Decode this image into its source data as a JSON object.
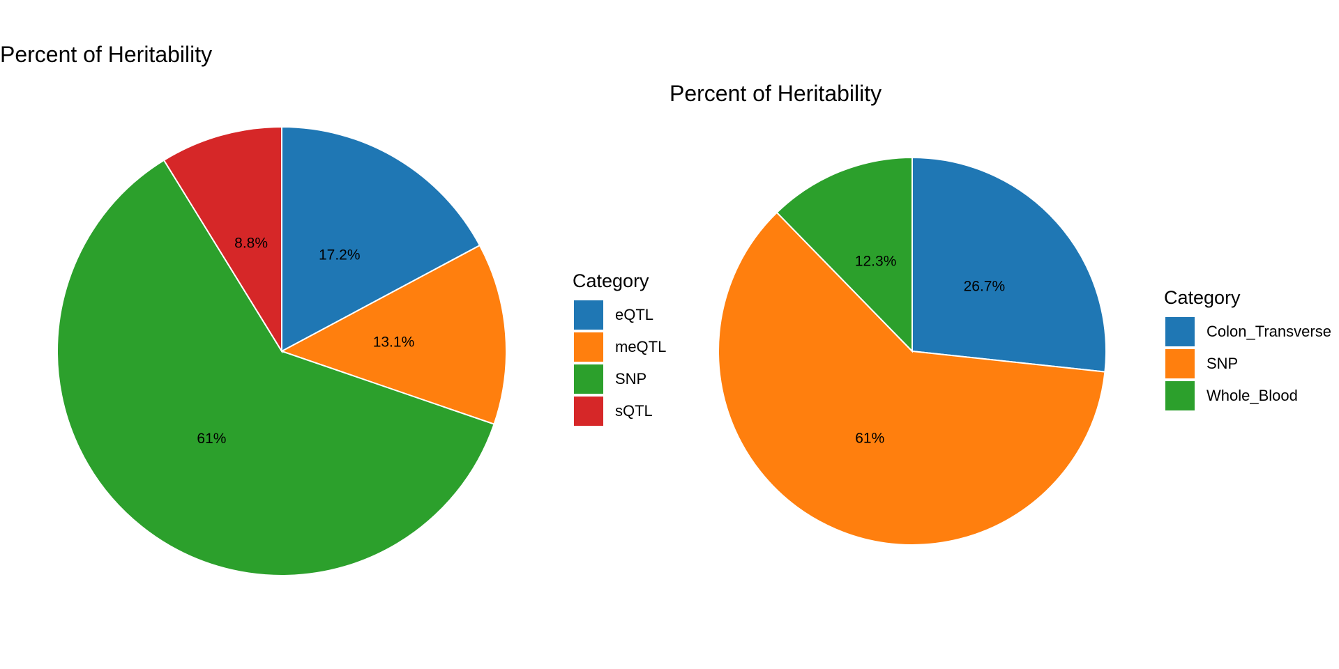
{
  "chart_data": [
    {
      "type": "pie",
      "title": "Percent of Heritability",
      "legend_title": "Category",
      "legend_position": "right",
      "slices": [
        {
          "category": "eQTL",
          "value": 17.2,
          "label": "17.2%",
          "color": "#1F77B4"
        },
        {
          "category": "meQTL",
          "value": 13.1,
          "label": "13.1%",
          "color": "#FF7F0E"
        },
        {
          "category": "SNP",
          "value": 61.0,
          "label": "61%",
          "color": "#2CA02C"
        },
        {
          "category": "sQTL",
          "value": 8.8,
          "label": "8.8%",
          "color": "#D62728"
        }
      ]
    },
    {
      "type": "pie",
      "title": "Percent of Heritability",
      "legend_title": "Category",
      "legend_position": "right",
      "slices": [
        {
          "category": "Colon_Transverse",
          "value": 26.7,
          "label": "26.7%",
          "color": "#1F77B4"
        },
        {
          "category": "SNP",
          "value": 61.0,
          "label": "61%",
          "color": "#FF7F0E"
        },
        {
          "category": "Whole_Blood",
          "value": 12.3,
          "label": "12.3%",
          "color": "#2CA02C"
        }
      ]
    }
  ]
}
